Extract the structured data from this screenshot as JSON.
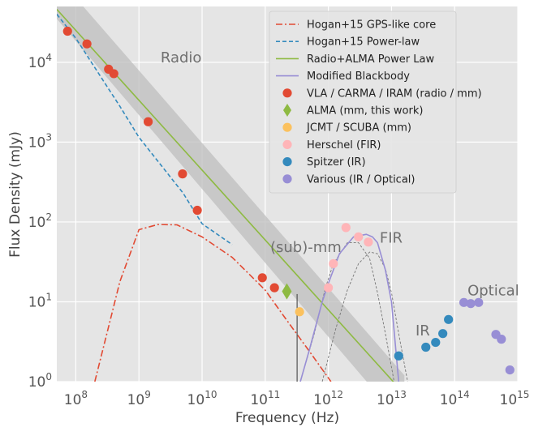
{
  "chart_data": {
    "type": "scatter",
    "title": "",
    "xlabel": "Frequency (Hz)",
    "ylabel": "Flux Density (mJy)",
    "xscale": "log",
    "yscale": "log",
    "xlim": [
      50000000,
      1000000000000000.0
    ],
    "ylim": [
      1,
      50000
    ],
    "grid": true,
    "legend_position": "top-right",
    "x_ticks": [
      {
        "base": "10",
        "exp": "8",
        "value": 100000000.0
      },
      {
        "base": "10",
        "exp": "9",
        "value": 1000000000.0
      },
      {
        "base": "10",
        "exp": "10",
        "value": 10000000000.0
      },
      {
        "base": "10",
        "exp": "11",
        "value": 100000000000.0
      },
      {
        "base": "10",
        "exp": "12",
        "value": 1000000000000.0
      },
      {
        "base": "10",
        "exp": "13",
        "value": 10000000000000.0
      },
      {
        "base": "10",
        "exp": "14",
        "value": 100000000000000.0
      },
      {
        "base": "10",
        "exp": "15",
        "value": 1000000000000000.0
      }
    ],
    "y_ticks": [
      {
        "base": "10",
        "exp": "0",
        "value": 1
      },
      {
        "base": "10",
        "exp": "1",
        "value": 10
      },
      {
        "base": "10",
        "exp": "2",
        "value": 100
      },
      {
        "base": "10",
        "exp": "3",
        "value": 1000
      },
      {
        "base": "10",
        "exp": "4",
        "value": 10000
      }
    ],
    "region_labels": [
      {
        "text": "Radio",
        "x": 2200000000.0,
        "y": 10000
      },
      {
        "text": "(sub)-mm",
        "x": 120000000000.0,
        "y": 42
      },
      {
        "text": "FIR",
        "x": 6500000000000.0,
        "y": 55
      },
      {
        "text": "IR",
        "x": 24000000000000.0,
        "y": 3.8
      },
      {
        "text": "Optical",
        "x": 160000000000000.0,
        "y": 12
      }
    ],
    "uncertainty_band": [
      {
        "x": 50000000.0,
        "y_low": 35000,
        "y_high": 120000
      },
      {
        "x": 16000000000000.0,
        "y_low": 0.28,
        "y_high": 1.2
      }
    ],
    "colors": {
      "gps_core": "#e24a33",
      "power_law": "#348abd",
      "radio_alma": "#8eba42",
      "blackbody": "#988ed5",
      "vla": "#e24a33",
      "alma": "#8eba42",
      "jcmt": "#fbc15e",
      "herschel": "#ffb5b8",
      "spitzer": "#348abd",
      "various": "#988ed5",
      "band": "#bdbdbd",
      "background": "#e5e5e5",
      "gridline": "#ffffff",
      "dust_component": "#777777"
    },
    "lines": [
      {
        "name": "Hogan+15 GPS-like core",
        "style": "dashdot",
        "color_key": "gps_core",
        "points": [
          [
            200000000.0,
            1
          ],
          [
            500000000.0,
            18
          ],
          [
            1000000000.0,
            80
          ],
          [
            2000000000.0,
            93
          ],
          [
            4000000000.0,
            92
          ],
          [
            10000000000.0,
            65
          ],
          [
            30000000000.0,
            36
          ],
          [
            100000000000.0,
            14
          ],
          [
            200000000000.0,
            6.5
          ],
          [
            500000000000.0,
            2.4
          ],
          [
            1100000000000.0,
            1
          ]
        ]
      },
      {
        "name": "Hogan+15 Power-law",
        "style": "dashed",
        "color_key": "power_law",
        "points": [
          [
            50000000.0,
            40000
          ],
          [
            100000000.0,
            20000
          ],
          [
            500000000.0,
            2800
          ],
          [
            1000000000.0,
            1150
          ],
          [
            5000000000.0,
            230
          ],
          [
            10000000000.0,
            95
          ],
          [
            30000000000.0,
            52
          ]
        ]
      },
      {
        "name": "Radio+ALMA Power Law",
        "style": "solid",
        "color_key": "radio_alma",
        "points": [
          [
            50000000.0,
            46000
          ],
          [
            16000000000000.0,
            0.7
          ]
        ]
      },
      {
        "name": "Modified Blackbody",
        "style": "solid",
        "color_key": "blackbody",
        "points": [
          [
            360000000000.0,
            1
          ],
          [
            500000000000.0,
            2.5
          ],
          [
            800000000000.0,
            10
          ],
          [
            1000000000000.0,
            17
          ],
          [
            1500000000000.0,
            40
          ],
          [
            2500000000000.0,
            65
          ],
          [
            4000000000000.0,
            70
          ],
          [
            5000000000000.0,
            65
          ],
          [
            6000000000000.0,
            55
          ],
          [
            8000000000000.0,
            25
          ],
          [
            10000000000000.0,
            10
          ],
          [
            13000000000000.0,
            1
          ]
        ]
      }
    ],
    "dust_components": [
      [
        [
          360000000000.0,
          1
        ],
        [
          600000000000.0,
          4
        ],
        [
          900000000000.0,
          15
        ],
        [
          1200000000000.0,
          30
        ],
        [
          2000000000000.0,
          55
        ],
        [
          3000000000000.0,
          55
        ],
        [
          4500000000000.0,
          35
        ],
        [
          6000000000000.0,
          13
        ],
        [
          8000000000000.0,
          4
        ],
        [
          11000000000000.0,
          1
        ]
      ],
      [
        [
          800000000000.0,
          1
        ],
        [
          1300000000000.0,
          4.5
        ],
        [
          2000000000000.0,
          14
        ],
        [
          3000000000000.0,
          30
        ],
        [
          4500000000000.0,
          42
        ],
        [
          6000000000000.0,
          40
        ],
        [
          8000000000000.0,
          26
        ],
        [
          10000000000000.0,
          13
        ],
        [
          13000000000000.0,
          4
        ],
        [
          18000000000000.0,
          1
        ]
      ]
    ],
    "error_bars": [
      {
        "x": 320000000000.0,
        "y_low": 1,
        "y_high": 12.5
      }
    ],
    "series": [
      {
        "name": "VLA / CARMA / IRAM (radio / mm)",
        "marker": "circle",
        "color_key": "vla",
        "points": [
          [
            74000000.0,
            24500
          ],
          [
            150000000.0,
            17000
          ],
          [
            330000000.0,
            8200
          ],
          [
            400000000.0,
            7200
          ],
          [
            1400000000.0,
            1800
          ],
          [
            4900000000.0,
            400
          ],
          [
            8400000000.0,
            140
          ],
          [
            90000000000.0,
            20
          ],
          [
            140000000000.0,
            15
          ]
        ]
      },
      {
        "name": "ALMA (mm, this work)",
        "marker": "diamond",
        "color_key": "alma",
        "points": [
          [
            220000000000.0,
            13.5
          ]
        ]
      },
      {
        "name": "JCMT / SCUBA (mm)",
        "marker": "circle",
        "color_key": "jcmt",
        "points": [
          [
            350000000000.0,
            7.5
          ]
        ]
      },
      {
        "name": "Herschel (FIR)",
        "marker": "circle",
        "color_key": "herschel",
        "points": [
          [
            1000000000000.0,
            15
          ],
          [
            1200000000000.0,
            30
          ],
          [
            1900000000000.0,
            85
          ],
          [
            3000000000000.0,
            65
          ],
          [
            4300000000000.0,
            56
          ]
        ]
      },
      {
        "name": "Spitzer (IR)",
        "marker": "circle",
        "color_key": "spitzer",
        "points": [
          [
            13000000000000.0,
            2.1
          ],
          [
            35000000000000.0,
            2.7
          ],
          [
            50000000000000.0,
            3.1
          ],
          [
            65000000000000.0,
            4
          ],
          [
            80000000000000.0,
            6
          ]
        ]
      },
      {
        "name": "Various (IR / Optical)",
        "marker": "circle",
        "color_key": "various",
        "points": [
          [
            140000000000000.0,
            9.8
          ],
          [
            180000000000000.0,
            9.5
          ],
          [
            240000000000000.0,
            9.8
          ],
          [
            450000000000000.0,
            3.9
          ],
          [
            550000000000000.0,
            3.4
          ],
          [
            750000000000000.0,
            1.4
          ]
        ]
      }
    ],
    "legend": [
      {
        "label": "Hogan+15 GPS-like core",
        "kind": "line",
        "style": "dashdot",
        "color_key": "gps_core"
      },
      {
        "label": "Hogan+15 Power-law",
        "kind": "line",
        "style": "dashed",
        "color_key": "power_law"
      },
      {
        "label": "Radio+ALMA Power Law",
        "kind": "line",
        "style": "solid",
        "color_key": "radio_alma"
      },
      {
        "label": "Modified Blackbody",
        "kind": "line",
        "style": "solid",
        "color_key": "blackbody"
      },
      {
        "label": "VLA / CARMA / IRAM (radio / mm)",
        "kind": "marker",
        "marker": "circle",
        "color_key": "vla"
      },
      {
        "label": "ALMA (mm, this work)",
        "kind": "marker",
        "marker": "diamond",
        "color_key": "alma"
      },
      {
        "label": "JCMT / SCUBA (mm)",
        "kind": "marker",
        "marker": "circle",
        "color_key": "jcmt"
      },
      {
        "label": "Herschel (FIR)",
        "kind": "marker",
        "marker": "circle",
        "color_key": "herschel"
      },
      {
        "label": "Spitzer (IR)",
        "kind": "marker",
        "marker": "circle",
        "color_key": "spitzer"
      },
      {
        "label": "Various (IR / Optical)",
        "kind": "marker",
        "marker": "circle",
        "color_key": "various"
      }
    ]
  }
}
